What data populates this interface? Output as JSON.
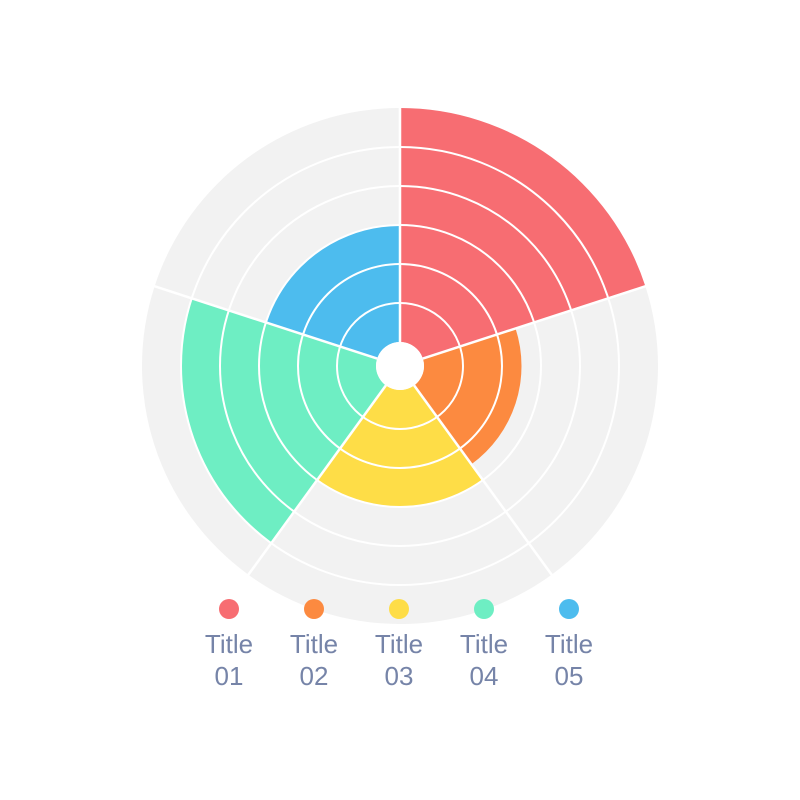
{
  "chart_data": {
    "type": "polar-area",
    "rings": 6,
    "max_value": 6,
    "background_color": "#f2f2f2",
    "ring_line_color": "#ffffff",
    "series": [
      {
        "label": "Title\n01",
        "value": 6,
        "color": "#f76d72"
      },
      {
        "label": "Title\n02",
        "value": 2.5,
        "color": "#fc8a40"
      },
      {
        "label": "Title\n03",
        "value": 3,
        "color": "#fedd47"
      },
      {
        "label": "Title\n04",
        "value": 5,
        "color": "#6eeec3"
      },
      {
        "label": "Title\n05",
        "value": 3,
        "color": "#4dbcee"
      }
    ]
  }
}
